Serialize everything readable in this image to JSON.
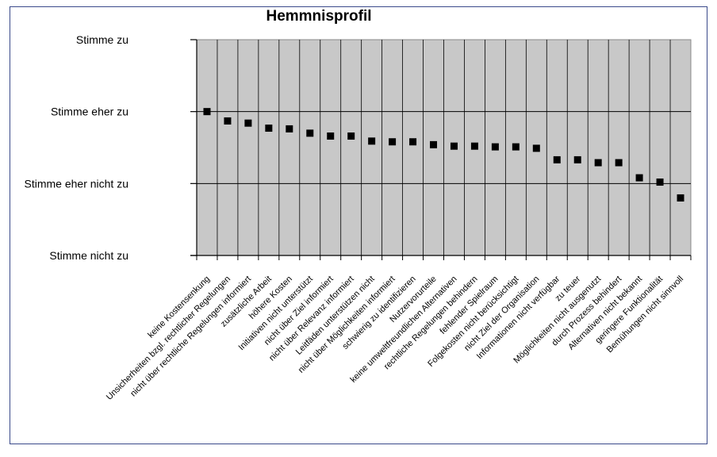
{
  "chart_data": {
    "type": "scatter",
    "title": "Hemmnisprofil",
    "y_categories": [
      "Stimme nicht zu",
      "Stimme eher nicht zu",
      "Stimme eher zu",
      "Stimme zu"
    ],
    "ylim": [
      1,
      4
    ],
    "grid": true,
    "categories": [
      "keine Kostensenkung",
      "Unsicherheiten bzgl. rechtlicher Regelungen",
      "nicht über rechtliche Regelungen informiert",
      "zusätzliche Arbeit",
      "höhere Kosten",
      "Initiativen nicht unterstützt",
      "nicht über Ziel informiert",
      "nicht über Relevanz informiert",
      "Leitfäden unterstützen nicht",
      "nicht über Möglichkeiten informiert",
      "schwierig zu identifizieren",
      "Nutzervorurteile",
      "keine umweltfreundlichen Alternativen",
      "rechtliche Regelungen behindern",
      "fehlender Spielraum",
      "Folgekosten nicht berücksichtigt",
      "nicht Ziel der Organisation",
      "Informationen nicht verfügbar",
      "zu teuer",
      "Möglichkeiten nicht ausgenutzt",
      "durch Prozess behindert",
      "Alternativen nicht bekannt",
      "geringere Funktionalität",
      "Bemühungen nicht sinnvoll"
    ],
    "values": [
      3.0,
      2.87,
      2.84,
      2.77,
      2.76,
      2.7,
      2.66,
      2.66,
      2.59,
      2.58,
      2.58,
      2.54,
      2.52,
      2.52,
      2.51,
      2.51,
      2.49,
      2.33,
      2.33,
      2.29,
      2.29,
      2.08,
      2.02,
      1.8
    ]
  }
}
